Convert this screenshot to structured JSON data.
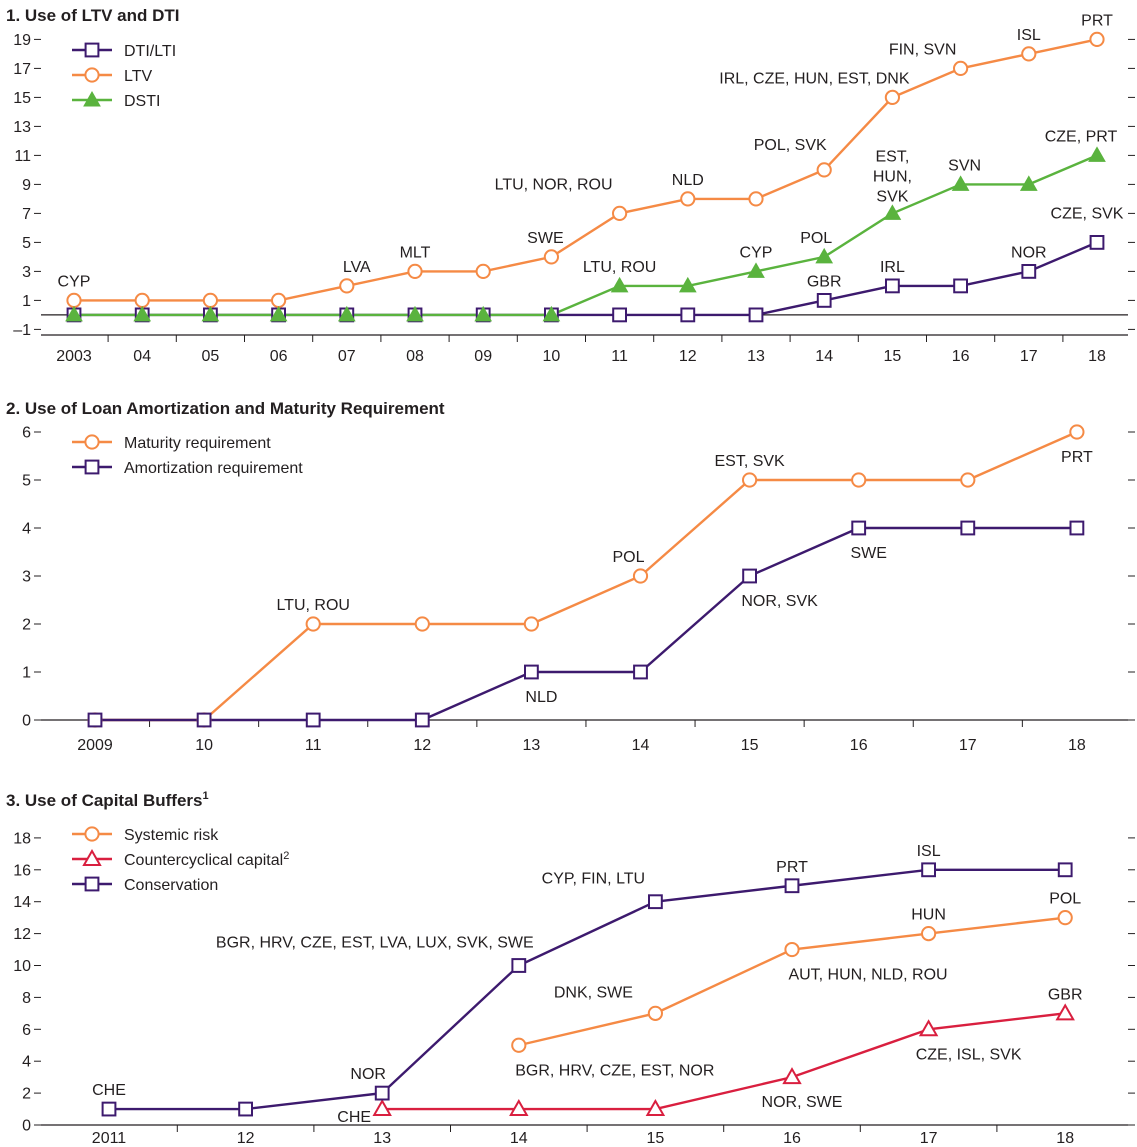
{
  "colors": {
    "purple": "#3d1a6e",
    "orange": "#f58a45",
    "green": "#5ab33e",
    "red": "#d91f3f",
    "text": "#231f20",
    "axis": "#231f20"
  },
  "chart_data": [
    {
      "type": "line",
      "title": "1. Use of LTV and DTI",
      "x": [
        "2003",
        "04",
        "05",
        "06",
        "07",
        "08",
        "09",
        "10",
        "11",
        "12",
        "13",
        "14",
        "15",
        "16",
        "17",
        "18"
      ],
      "ylim": [
        -1,
        19
      ],
      "yticks": [
        -1,
        1,
        3,
        5,
        7,
        9,
        11,
        13,
        15,
        17,
        19
      ],
      "grid": false,
      "legend_position": "top-left",
      "series": [
        {
          "name": "DTI/LTI",
          "marker": "square",
          "color": "#3d1a6e",
          "values": [
            0,
            0,
            0,
            0,
            0,
            0,
            0,
            0,
            0,
            0,
            0,
            1,
            2,
            2,
            3,
            5
          ]
        },
        {
          "name": "LTV",
          "marker": "circle",
          "color": "#f58a45",
          "values": [
            1,
            1,
            1,
            1,
            2,
            3,
            3,
            4,
            7,
            8,
            8,
            10,
            15,
            17,
            18,
            19
          ]
        },
        {
          "name": "DSTI",
          "marker": "triangle-filled",
          "color": "#5ab33e",
          "values": [
            0,
            0,
            0,
            0,
            0,
            0,
            0,
            0,
            2,
            2,
            3,
            4,
            7,
            9,
            9,
            11
          ]
        }
      ],
      "annotations": [
        {
          "series": "LTV",
          "x": "2003",
          "text": "CYP"
        },
        {
          "series": "LTV",
          "x": "07",
          "text": "LVA"
        },
        {
          "series": "LTV",
          "x": "08",
          "text": "MLT"
        },
        {
          "series": "LTV",
          "x": "10",
          "text": "SWE"
        },
        {
          "series": "LTV",
          "x": "11",
          "text": "LTU, NOR, ROU"
        },
        {
          "series": "LTV",
          "x": "12",
          "text": "NLD"
        },
        {
          "series": "LTV",
          "x": "14",
          "text": "POL, SVK"
        },
        {
          "series": "LTV",
          "x": "15",
          "text": "IRL, CZE, HUN, EST, DNK"
        },
        {
          "series": "LTV",
          "x": "16",
          "text": "FIN, SVN"
        },
        {
          "series": "LTV",
          "x": "17",
          "text": "ISL"
        },
        {
          "series": "LTV",
          "x": "18",
          "text": "PRT"
        },
        {
          "series": "DSTI",
          "x": "11",
          "text": "LTU, ROU"
        },
        {
          "series": "DSTI",
          "x": "13",
          "text": "CYP"
        },
        {
          "series": "DSTI",
          "x": "14",
          "text": "POL"
        },
        {
          "series": "DSTI",
          "x": "15",
          "text": [
            "EST,",
            "HUN,",
            "SVK"
          ]
        },
        {
          "series": "DSTI",
          "x": "16",
          "text": "SVN"
        },
        {
          "series": "DSTI",
          "x": "18",
          "text": "CZE, PRT"
        },
        {
          "series": "DTI/LTI",
          "x": "14",
          "text": "GBR"
        },
        {
          "series": "DTI/LTI",
          "x": "15",
          "text": "IRL"
        },
        {
          "series": "DTI/LTI",
          "x": "17",
          "text": "NOR"
        },
        {
          "series": "DTI/LTI",
          "x": "18",
          "text": "CZE, SVK"
        }
      ]
    },
    {
      "type": "line",
      "title": "2. Use of Loan Amortization and Maturity Requirement",
      "x": [
        "2009",
        "10",
        "11",
        "12",
        "13",
        "14",
        "15",
        "16",
        "17",
        "18"
      ],
      "ylim": [
        0,
        6
      ],
      "yticks": [
        0,
        1,
        2,
        3,
        4,
        5,
        6
      ],
      "grid": false,
      "legend_position": "top-left",
      "series": [
        {
          "name": "Maturity requirement",
          "marker": "circle",
          "color": "#f58a45",
          "values": [
            0,
            0,
            2,
            2,
            2,
            3,
            5,
            5,
            5,
            6
          ]
        },
        {
          "name": "Amortization requirement",
          "marker": "square",
          "color": "#3d1a6e",
          "values": [
            0,
            0,
            0,
            0,
            1,
            1,
            3,
            4,
            4,
            4
          ]
        }
      ],
      "annotations": [
        {
          "series": "Maturity requirement",
          "x": "11",
          "text": "LTU, ROU"
        },
        {
          "series": "Maturity requirement",
          "x": "14",
          "text": "POL"
        },
        {
          "series": "Maturity requirement",
          "x": "15",
          "text": "EST, SVK"
        },
        {
          "series": "Maturity requirement",
          "x": "18",
          "text": "PRT"
        },
        {
          "series": "Amortization requirement",
          "x": "13",
          "text": "NLD"
        },
        {
          "series": "Amortization requirement",
          "x": "15",
          "text": "NOR, SVK"
        },
        {
          "series": "Amortization requirement",
          "x": "16",
          "text": "SWE"
        }
      ]
    },
    {
      "type": "line",
      "title": "3. Use of Capital Buffers",
      "title_footnote": "1",
      "x": [
        "2011",
        "12",
        "13",
        "14",
        "15",
        "16",
        "17",
        "18"
      ],
      "ylim": [
        0,
        18
      ],
      "yticks": [
        0,
        2,
        4,
        6,
        8,
        10,
        12,
        14,
        16,
        18
      ],
      "grid": false,
      "legend_position": "top-left",
      "series": [
        {
          "name": "Systemic risk",
          "marker": "circle",
          "color": "#f58a45",
          "values": [
            null,
            null,
            null,
            5,
            7,
            11,
            12,
            13
          ]
        },
        {
          "name": "Countercyclical capital",
          "footnote": "2",
          "marker": "triangle",
          "color": "#d91f3f",
          "values": [
            null,
            null,
            1,
            1,
            1,
            3,
            6,
            7
          ]
        },
        {
          "name": "Conservation",
          "marker": "square",
          "color": "#3d1a6e",
          "values": [
            1,
            1,
            2,
            10,
            14,
            15,
            16,
            16
          ]
        }
      ],
      "annotations": [
        {
          "series": "Conservation",
          "x": "2011",
          "text": "CHE"
        },
        {
          "series": "Conservation",
          "x": "13",
          "text": "NOR"
        },
        {
          "series": "Conservation",
          "x": "14",
          "text": "BGR, HRV, CZE, EST, LVA, LUX, SVK, SWE"
        },
        {
          "series": "Conservation",
          "x": "15",
          "text": "CYP, FIN, LTU"
        },
        {
          "series": "Conservation",
          "x": "16",
          "text": "PRT"
        },
        {
          "series": "Conservation",
          "x": "17",
          "text": "ISL"
        },
        {
          "series": "Countercyclical capital",
          "x": "13",
          "text": "CHE"
        },
        {
          "series": "Countercyclical capital",
          "x": "16",
          "text": "NOR, SWE"
        },
        {
          "series": "Countercyclical capital",
          "x": "17",
          "text": "CZE, ISL, SVK"
        },
        {
          "series": "Countercyclical capital",
          "x": "18",
          "text": "GBR"
        },
        {
          "series": "Systemic risk",
          "x": "14",
          "text": "BGR, HRV, CZE, EST, NOR"
        },
        {
          "series": "Systemic risk",
          "x": "15",
          "text": "DNK, SWE"
        },
        {
          "series": "Systemic risk",
          "x": "16",
          "text": "AUT, HUN, NLD, ROU"
        },
        {
          "series": "Systemic risk",
          "x": "17",
          "text": "HUN"
        },
        {
          "series": "Systemic risk",
          "x": "18",
          "text": "POL"
        }
      ]
    }
  ]
}
